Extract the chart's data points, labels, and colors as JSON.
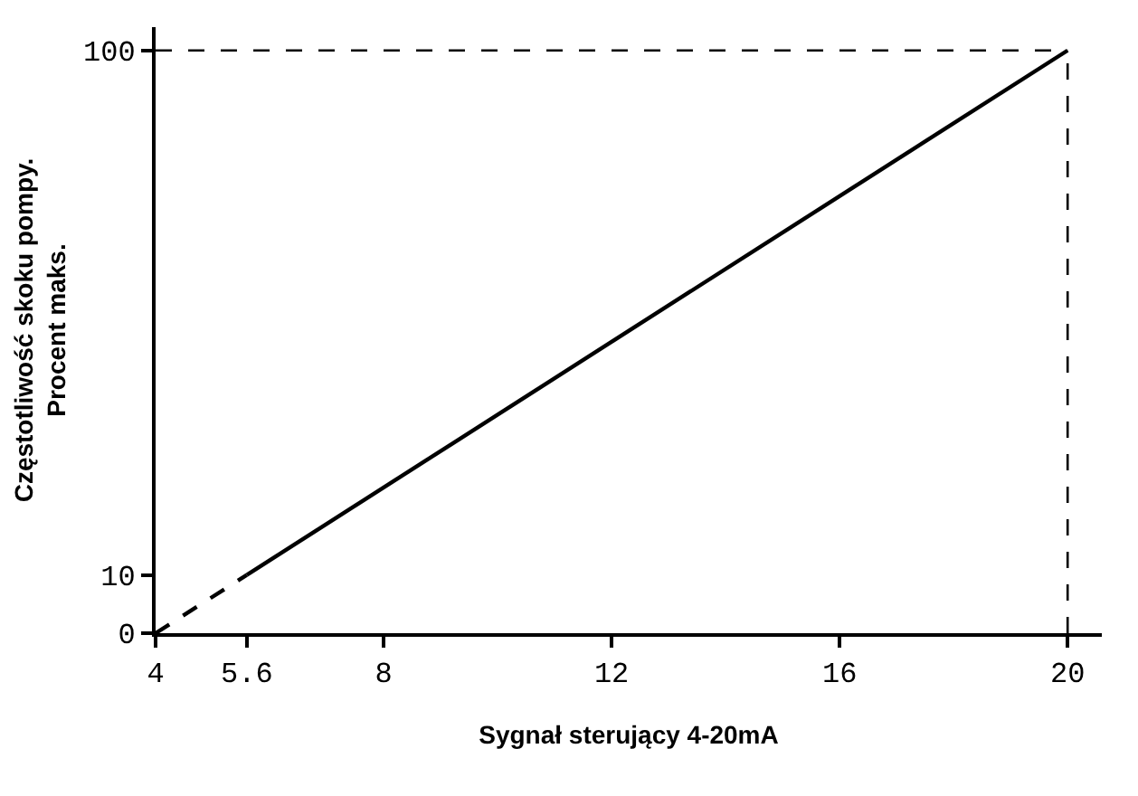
{
  "chart_data": {
    "type": "line",
    "xlabel": "Sygnał sterujący 4-20mA",
    "ylabel": "Częstotliwość skoku pompy.\nProcent maks.",
    "xlim": [
      4,
      20.6
    ],
    "ylim": [
      0,
      104
    ],
    "xticks": [
      4,
      5.6,
      8,
      12,
      16,
      20
    ],
    "yticks": [
      0,
      10,
      100
    ],
    "series": [
      {
        "x": [
          5.6,
          20
        ],
        "values": [
          10,
          100
        ],
        "color": "#000000",
        "line_style": "solid"
      },
      {
        "x": [
          4,
          5.6
        ],
        "values": [
          0,
          10
        ],
        "color": "#000000",
        "line_style": "dashed"
      }
    ],
    "ref_lines": [
      {
        "axis": "y",
        "value": 100,
        "line_style": "dashed",
        "color": "#000000"
      },
      {
        "axis": "x",
        "value": 20,
        "line_style": "dashed",
        "color": "#000000"
      }
    ],
    "marker": "none"
  }
}
